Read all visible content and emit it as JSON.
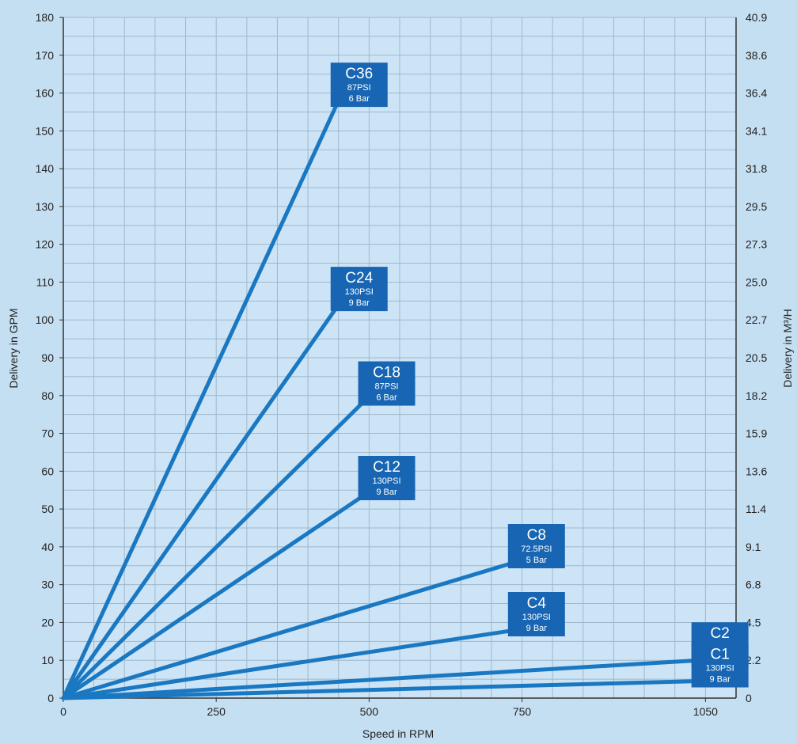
{
  "chart_data": {
    "type": "line",
    "xlabel": "Speed in RPM",
    "ylabel": "Delivery in GPM",
    "y2label": "Delivery in M³/H",
    "xlim": [
      0,
      1100
    ],
    "ylim": [
      0,
      180
    ],
    "x_ticks": [
      "0",
      "250",
      "500",
      "750",
      "1050"
    ],
    "y_ticks": [
      "0",
      "10",
      "20",
      "30",
      "40",
      "50",
      "60",
      "70",
      "80",
      "90",
      "100",
      "110",
      "120",
      "130",
      "140",
      "150",
      "160",
      "170",
      "180"
    ],
    "y2_ticks": [
      "0",
      "2.2",
      "4.5",
      "6.8",
      "9.1",
      "11.4",
      "13.6",
      "15.9",
      "18.2",
      "20.5",
      "22.7",
      "25.0",
      "27.3",
      "29.5",
      "31.8",
      "34.1",
      "36.4",
      "38.6",
      "40.9"
    ],
    "grid": true,
    "line_color": "#1a78c2",
    "label_color": "#1866b3",
    "background": "#c5dff2",
    "series": [
      {
        "name": "C36",
        "pressure_psi": "87PSI",
        "pressure_bar": "6 Bar",
        "x": [
          0,
          450
        ],
        "y": [
          0,
          158
        ]
      },
      {
        "name": "C24",
        "pressure_psi": "130PSI",
        "pressure_bar": "9 Bar",
        "x": [
          0,
          450
        ],
        "y": [
          0,
          104
        ]
      },
      {
        "name": "C18",
        "pressure_psi": "87PSI",
        "pressure_bar": "6 Bar",
        "x": [
          0,
          495
        ],
        "y": [
          0,
          79
        ]
      },
      {
        "name": "C12",
        "pressure_psi": "130PSI",
        "pressure_bar": "9 Bar",
        "x": [
          0,
          495
        ],
        "y": [
          0,
          54
        ]
      },
      {
        "name": "C8",
        "pressure_psi": "72.5PSI",
        "pressure_bar": "5 Bar",
        "x": [
          0,
          740
        ],
        "y": [
          0,
          36
        ]
      },
      {
        "name": "C4",
        "pressure_psi": "130PSI",
        "pressure_bar": "9 Bar",
        "x": [
          0,
          740
        ],
        "y": [
          0,
          18
        ]
      },
      {
        "name": "C2",
        "pressure_psi": "130PSI",
        "pressure_bar": "9 Bar",
        "x": [
          0,
          1040
        ],
        "y": [
          0,
          10
        ]
      },
      {
        "name": "C1",
        "pressure_psi": "130PSI",
        "pressure_bar": "9 Bar",
        "x": [
          0,
          1040
        ],
        "y": [
          0,
          4.5
        ]
      }
    ]
  }
}
